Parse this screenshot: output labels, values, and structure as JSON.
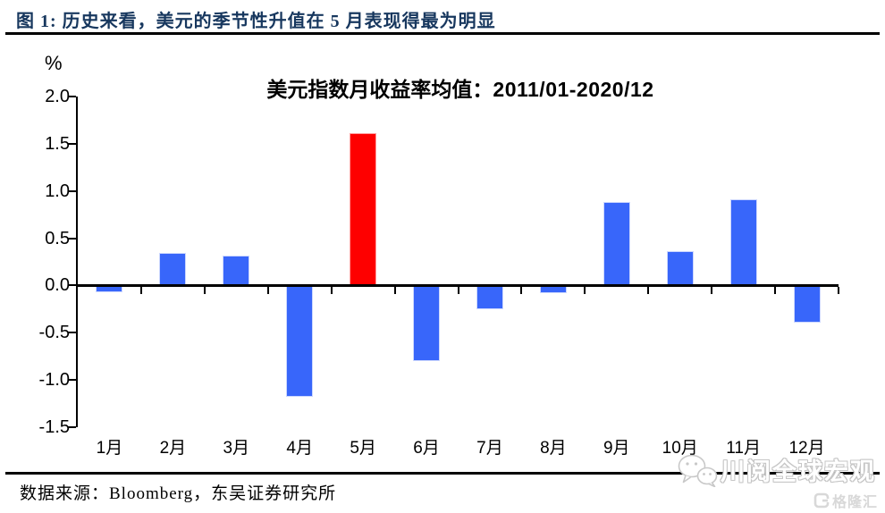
{
  "header": {
    "title": "图 1:  历史来看，美元的季节性升值在 5 月表现得最为明显"
  },
  "chart_data": {
    "type": "bar",
    "title_cn": "美元指数月收益率均值：",
    "title_range": "2011/01-2020/12",
    "title": "美元指数月收益率均值：2011/01-2020/12",
    "unit_label": "%",
    "xlabel": "",
    "ylabel": "%",
    "categories": [
      "1月",
      "2月",
      "3月",
      "4月",
      "5月",
      "6月",
      "7月",
      "8月",
      "9月",
      "10月",
      "11月",
      "12月"
    ],
    "values": [
      -0.07,
      0.34,
      0.32,
      -1.18,
      1.61,
      -0.8,
      -0.25,
      -0.08,
      0.88,
      0.36,
      0.91,
      -0.39
    ],
    "highlight_index": 4,
    "bar_color": "#3866fa",
    "highlight_color": "#fe0000",
    "ylim": [
      -1.5,
      2.0
    ],
    "ytick_step": 0.5,
    "yticks": [
      "2.0",
      "1.5",
      "1.0",
      "0.5",
      "0.0",
      "-0.5",
      "-1.0",
      "-1.5"
    ],
    "grid": "off",
    "legend": "none"
  },
  "footer": {
    "source": "数据来源：Bloomberg，东吴证券研究所"
  },
  "watermark": {
    "icon": "wechat-icon",
    "text": "川阅全球宏观"
  },
  "logo": {
    "icon": "gelonghui-icon",
    "text": "格隆汇"
  },
  "colors": {
    "caption_navy": "#17375e",
    "axis_black": "#000000",
    "watermark_gray": "#c6c6c6",
    "logo_gray": "#d8d8d8"
  }
}
